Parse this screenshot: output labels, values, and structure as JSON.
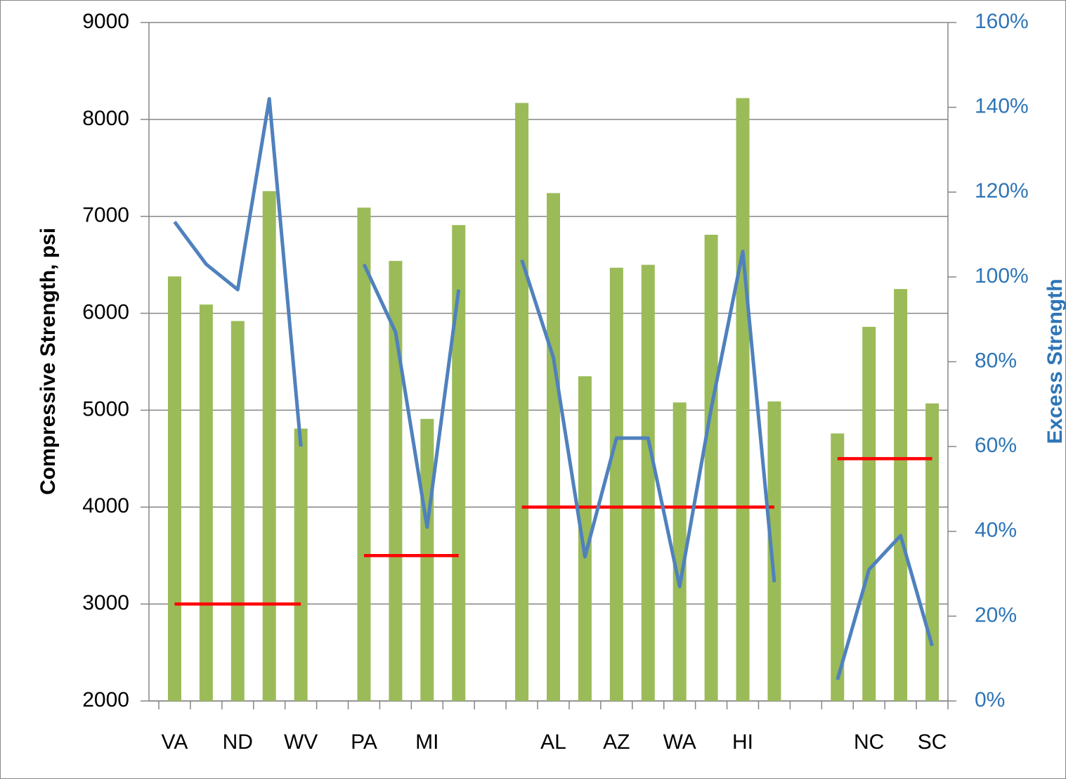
{
  "chart_data": {
    "type": "bar",
    "categories": [
      "VA",
      null,
      "ND",
      null,
      "WV",
      null,
      "PA",
      null,
      "MI",
      null,
      null,
      null,
      "AL",
      null,
      "AZ",
      null,
      "WA",
      null,
      "HI",
      null,
      null,
      null,
      "NC",
      null,
      "SC"
    ],
    "series": [
      {
        "type": "bar",
        "color": "#9bbb59",
        "values": [
          6380,
          6090,
          5920,
          7260,
          4810,
          null,
          7090,
          6540,
          4910,
          6910,
          null,
          8170,
          7240,
          5350,
          6470,
          6500,
          5080,
          6810,
          8220,
          5090,
          null,
          4760,
          5860,
          6250,
          5070
        ]
      },
      {
        "type": "line",
        "color": "#ff0000",
        "values": [
          3000,
          3000,
          3000,
          3000,
          3000,
          null,
          3500,
          3500,
          3500,
          3500,
          null,
          4000,
          4000,
          4000,
          4000,
          4000,
          4000,
          4000,
          4000,
          4000,
          null,
          4500,
          4500,
          4500,
          4500
        ]
      },
      {
        "type": "line",
        "color": "#4f81bd",
        "axis": "y2",
        "values": [
          113,
          103,
          97,
          142,
          60,
          null,
          103,
          87,
          41,
          97,
          null,
          104,
          81,
          34,
          62,
          62,
          27,
          69,
          106,
          28,
          null,
          5,
          31,
          39,
          13
        ]
      }
    ],
    "ylabel": "Compressive Strength, psi",
    "y2label": "Excess Strength",
    "ylim": [
      2000,
      9000
    ],
    "yticks": [
      2000,
      3000,
      4000,
      5000,
      6000,
      7000,
      8000,
      9000
    ],
    "y2lim": [
      0,
      160
    ],
    "y2ticks": [
      {
        "value": 0,
        "label": "0%"
      },
      {
        "value": 20,
        "label": "20%"
      },
      {
        "value": 40,
        "label": "40%"
      },
      {
        "value": 60,
        "label": "60%"
      },
      {
        "value": 80,
        "label": "80%"
      },
      {
        "value": 100,
        "label": "100%"
      },
      {
        "value": 120,
        "label": "120%"
      },
      {
        "value": 140,
        "label": "140%"
      },
      {
        "value": 160,
        "label": "160%"
      }
    ],
    "grid": true
  }
}
